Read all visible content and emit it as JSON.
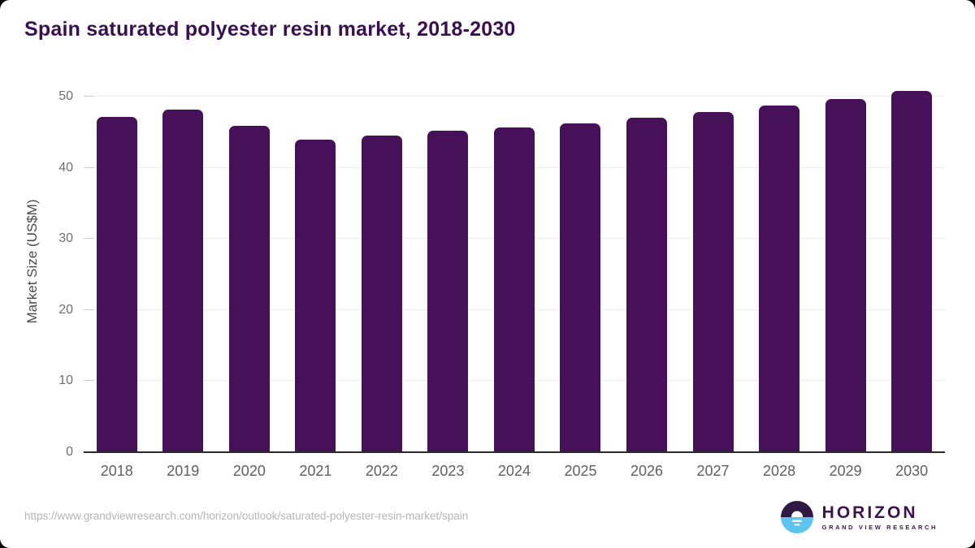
{
  "title": "Spain saturated polyester resin market, 2018-2030",
  "footer": {
    "source_url": "https://www.grandviewresearch.com/horizon/outlook/saturated-polyester-resin-market/spain"
  },
  "logo": {
    "name": "HORIZON",
    "subtitle": "GRAND VIEW RESEARCH"
  },
  "colors": {
    "bar": "#461159",
    "title_text": "#390f52",
    "axis_text": "#6e6e6e",
    "gridline": "#ededed",
    "axis_line": "#2b2b2b",
    "logo_purple": "#2e1945",
    "logo_blue": "#5bc4f0"
  },
  "chart_data": {
    "type": "bar",
    "title": "Spain saturated polyester resin market, 2018-2030",
    "categories": [
      "2018",
      "2019",
      "2020",
      "2021",
      "2022",
      "2023",
      "2024",
      "2025",
      "2026",
      "2027",
      "2028",
      "2029",
      "2030"
    ],
    "values": [
      47.2,
      48.2,
      45.9,
      44.0,
      44.5,
      45.2,
      45.7,
      46.2,
      47.0,
      47.8,
      48.7,
      49.7,
      50.8
    ],
    "xlabel": "",
    "ylabel": "Market Size (US$M)",
    "unit": "US$M",
    "ylim": [
      0,
      50
    ],
    "yticks": [
      0,
      10,
      20,
      30,
      40,
      50
    ],
    "grid": true,
    "legend": "none",
    "bar_color": "#461159"
  }
}
